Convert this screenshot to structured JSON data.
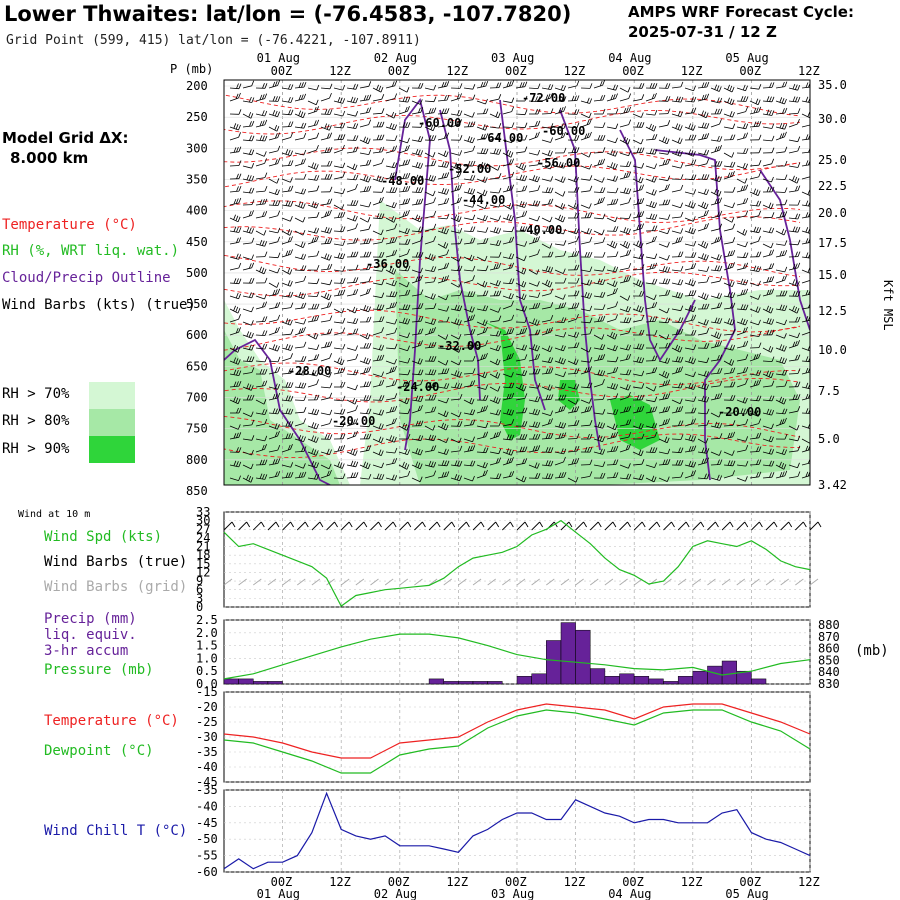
{
  "header": {
    "title": "Lower Thwaites:  lat/lon = (-76.4583, -107.7820)",
    "cycle_line1": "AMPS WRF Forecast Cycle:",
    "cycle_line2": "2025-07-31 / 12  Z",
    "grid_point": "Grid Point (599, 415) lat/lon = (-76.4221, -107.8911)",
    "model_grid_line1": "Model Grid ΔX:",
    "model_grid_line2": "8.000 km"
  },
  "legend": {
    "temperature": "Temperature (°C)",
    "rh": "RH (%, WRT liq. wat.)",
    "cloud": "Cloud/Precip Outline",
    "wind": "Wind Barbs (kts) (true)",
    "rh70": "RH > 70%",
    "rh80": "RH > 80%",
    "rh90": "RH > 90%"
  },
  "colors": {
    "temperature": "#ee2222",
    "rh": "#22bb22",
    "cloud": "#662299",
    "rh70": "#d4f7d4",
    "rh80": "#a6e8a6",
    "rh90": "#2fd53a",
    "wind_spd": "#22bb22",
    "wind_grid": "#aaaaaa",
    "precip": "#662299",
    "pressure": "#22bb22",
    "dewpoint": "#22bb22",
    "windchill": "#1a1aa8"
  },
  "time_axis": {
    "hours": [
      "00Z",
      "12Z",
      "00Z",
      "12Z",
      "00Z",
      "12Z",
      "00Z",
      "12Z",
      "00Z",
      "12Z"
    ],
    "dates": [
      "01 Aug",
      "02 Aug",
      "03 Aug",
      "04 Aug",
      "05 Aug"
    ]
  },
  "chart_data": [
    {
      "type": "heatmap",
      "name": "cross_section",
      "xlabel": "",
      "ylabel": "P (mb)",
      "y_ticks": [
        "200",
        "250",
        "300",
        "350",
        "400",
        "450",
        "500",
        "550",
        "600",
        "650",
        "700",
        "750",
        "800",
        "850"
      ],
      "right_ticks": [
        "35.0",
        "30.0",
        "25.0",
        "22.5",
        "20.0",
        "17.5",
        "15.0",
        "12.5",
        "10.0",
        "7.5",
        "5.0",
        "3.42"
      ],
      "right_label": "Kft MSL",
      "temperature_labels": [
        "-72.00",
        "-60.00",
        "-64.00",
        "-60.00",
        "-56.00",
        "-52.00",
        "-48.00",
        "-44.00",
        "-40.00",
        "-36.00",
        "-32.00",
        "-28.00",
        "-24.00",
        "-20.00",
        "-20.00"
      ]
    },
    {
      "type": "line",
      "name": "wind_10m",
      "panel_label": "Wind at 10 m",
      "series_labels": [
        "Wind Spd (kts)",
        "Wind Barbs (true)",
        "Wind Barbs (grid)"
      ],
      "y_ticks": [
        "33",
        "30",
        "27",
        "24",
        "21",
        "18",
        "15",
        "12",
        "9",
        "6",
        "3",
        "0"
      ],
      "ylim": [
        0,
        33
      ],
      "series": [
        {
          "name": "Wind Spd (kts)",
          "x": [
            -12,
            -9,
            -6,
            -3,
            0,
            3,
            6,
            9,
            12,
            15,
            18,
            21,
            24,
            27,
            30,
            33,
            36,
            39,
            42,
            45,
            48,
            51,
            54,
            57,
            60,
            63,
            66,
            69,
            72,
            75,
            78,
            81,
            84,
            87,
            90,
            93,
            96,
            99,
            102,
            105,
            108
          ],
          "values": [
            26,
            21,
            22,
            20,
            18,
            16,
            14,
            10,
            0.3,
            4,
            5,
            6,
            6.5,
            7,
            7.5,
            10,
            14,
            17,
            18,
            19,
            21,
            25,
            27,
            30,
            26,
            22,
            17,
            13,
            11,
            8,
            9,
            14,
            21,
            23,
            22,
            21,
            23,
            20,
            16,
            14,
            13
          ]
        }
      ]
    },
    {
      "type": "bar",
      "name": "precip_pressure",
      "series_labels": [
        "Precip (mm)",
        "liq. equiv.",
        "3-hr accum",
        "Pressure (mb)"
      ],
      "y_ticks": [
        "2.5",
        "2.0",
        "1.5",
        "1.0",
        "0.5",
        "0.0"
      ],
      "right_ticks": [
        "880",
        "870",
        "860",
        "850",
        "840",
        "830"
      ],
      "right_label": "(mb)",
      "ylim": [
        0,
        2.5
      ],
      "y2lim": [
        830,
        880
      ],
      "series": [
        {
          "name": "Precip (mm)",
          "x": [
            -12,
            -9,
            -6,
            -3,
            0,
            3,
            6,
            9,
            12,
            15,
            18,
            21,
            24,
            27,
            30,
            33,
            36,
            39,
            42,
            45,
            48,
            51,
            54,
            57,
            60,
            63,
            66,
            69,
            72,
            75,
            78,
            81,
            84,
            87,
            90,
            93,
            96,
            99,
            102,
            105
          ],
          "values": [
            0.2,
            0.2,
            0.1,
            0.1,
            0,
            0,
            0,
            0,
            0,
            0,
            0,
            0,
            0,
            0,
            0.2,
            0.1,
            0.1,
            0.1,
            0.1,
            0,
            0.3,
            0.4,
            1.7,
            2.4,
            2.1,
            0.6,
            0.3,
            0.4,
            0.3,
            0.2,
            0.1,
            0.3,
            0.5,
            0.7,
            0.9,
            0.5,
            0.2,
            0,
            0,
            0
          ]
        },
        {
          "name": "Pressure (mb)",
          "x": [
            -12,
            -6,
            0,
            6,
            12,
            18,
            24,
            30,
            36,
            42,
            48,
            54,
            60,
            66,
            72,
            78,
            84,
            90,
            96,
            102,
            108
          ],
          "values": [
            834,
            838,
            845,
            852,
            859,
            865,
            869,
            869,
            866,
            860,
            853,
            849,
            847,
            845,
            842,
            841,
            843,
            837,
            840,
            846,
            849
          ]
        }
      ]
    },
    {
      "type": "line",
      "name": "temperature_dewpoint",
      "y_ticks": [
        "-15",
        "-20",
        "-25",
        "-30",
        "-35",
        "-40",
        "-45"
      ],
      "ylim": [
        -45,
        -15
      ],
      "series": [
        {
          "name": "Temperature (°C)",
          "x": [
            -12,
            -6,
            0,
            6,
            12,
            18,
            24,
            30,
            36,
            42,
            48,
            54,
            60,
            66,
            72,
            78,
            84,
            90,
            96,
            102,
            108
          ],
          "values": [
            -29,
            -30,
            -32,
            -35,
            -37,
            -37,
            -32,
            -31,
            -30,
            -25,
            -21,
            -19,
            -20,
            -21,
            -24,
            -20,
            -19,
            -19,
            -22,
            -25,
            -29
          ]
        },
        {
          "name": "Dewpoint (°C)",
          "x": [
            -12,
            -6,
            0,
            6,
            12,
            18,
            24,
            30,
            36,
            42,
            48,
            54,
            60,
            66,
            72,
            78,
            84,
            90,
            96,
            102,
            108
          ],
          "values": [
            -31,
            -32,
            -35,
            -38,
            -42,
            -42,
            -36,
            -34,
            -33,
            -27,
            -23,
            -21,
            -22,
            -24,
            -26,
            -22,
            -21,
            -21,
            -25,
            -28,
            -34
          ]
        }
      ]
    },
    {
      "type": "line",
      "name": "wind_chill",
      "y_ticks": [
        "-35",
        "-40",
        "-45",
        "-50",
        "-55",
        "-60"
      ],
      "ylim": [
        -60,
        -35
      ],
      "series": [
        {
          "name": "Wind Chill T (°C)",
          "x": [
            -12,
            -9,
            -6,
            -3,
            0,
            3,
            6,
            9,
            12,
            15,
            18,
            21,
            24,
            27,
            30,
            33,
            36,
            39,
            42,
            45,
            48,
            51,
            54,
            57,
            60,
            63,
            66,
            69,
            72,
            75,
            78,
            81,
            84,
            87,
            90,
            93,
            96,
            99,
            102,
            105,
            108
          ],
          "values": [
            -59,
            -56,
            -59,
            -57,
            -57,
            -55,
            -48,
            -36,
            -47,
            -49,
            -50,
            -49,
            -52,
            -52,
            -52,
            -53,
            -54,
            -49,
            -47,
            -44,
            -42,
            -42,
            -44,
            -44,
            -38,
            -40,
            -42,
            -43,
            -45,
            -44,
            -44,
            -45,
            -45,
            -45,
            -42,
            -41,
            -48,
            -50,
            -51,
            -53,
            -55
          ]
        }
      ]
    }
  ]
}
